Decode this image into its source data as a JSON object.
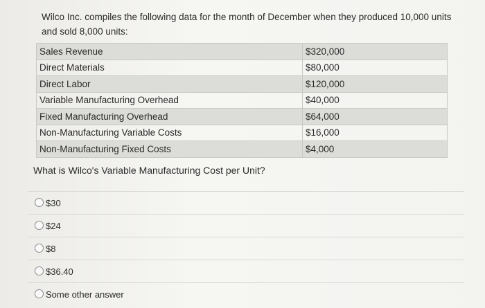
{
  "intro": "Wilco Inc. compiles the following data for the month of December when they produced 10,000 units and sold 8,000 units:",
  "table": {
    "rows": [
      [
        "Sales Revenue",
        "$320,000"
      ],
      [
        "Direct Materials",
        "$80,000"
      ],
      [
        "Direct Labor",
        "$120,000"
      ],
      [
        "Variable Manufacturing Overhead",
        "$40,000"
      ],
      [
        "Fixed Manufacturing Overhead",
        "$64,000"
      ],
      [
        "Non-Manufacturing Variable Costs",
        "$16,000"
      ],
      [
        "Non-Manufacturing Fixed Costs",
        "$4,000"
      ]
    ]
  },
  "question": "What is Wilco's Variable Manufacturing Cost per Unit?",
  "options": [
    "$30",
    "$24",
    "$8",
    "$36.40",
    "Some other answer"
  ]
}
